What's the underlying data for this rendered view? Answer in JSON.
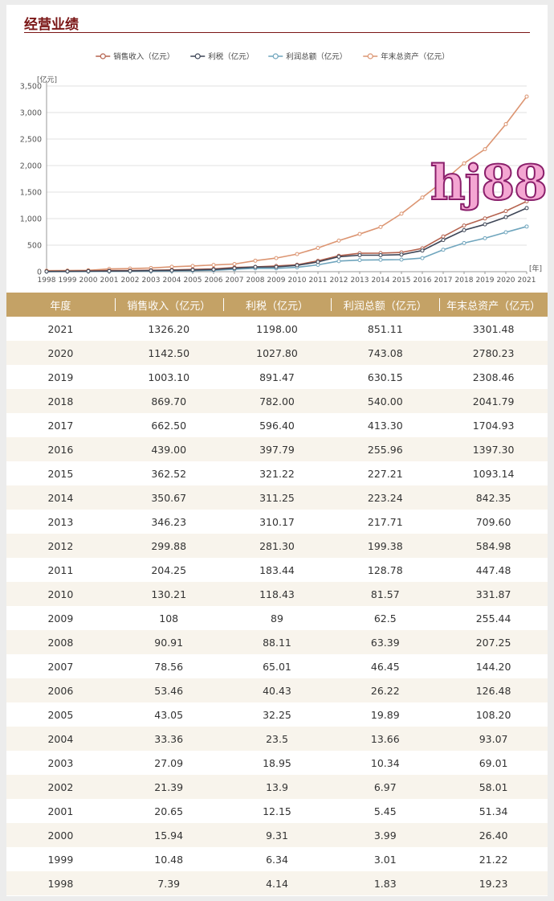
{
  "section_title": "经营业绩",
  "watermark_text": "hj88",
  "chart_data": {
    "type": "line",
    "y_unit_label": "[亿元]",
    "x_unit_label": "[年]",
    "ylim": [
      0,
      3500
    ],
    "y_ticks": [
      "0",
      "500",
      "1,000",
      "1,500",
      "2,000",
      "2,500",
      "3,000",
      "3,500"
    ],
    "y_tick_values": [
      0,
      500,
      1000,
      1500,
      2000,
      2500,
      3000,
      3500
    ],
    "grid": true,
    "legend_position": "top-center",
    "x": [
      "1998",
      "1999",
      "2000",
      "2001",
      "2002",
      "2003",
      "2004",
      "2005",
      "2006",
      "2007",
      "2008",
      "2009",
      "2010",
      "2011",
      "2012",
      "2013",
      "2014",
      "2015",
      "2016",
      "2017",
      "2018",
      "2019",
      "2020",
      "2021"
    ],
    "series": [
      {
        "name": "销售收入（亿元）",
        "color": "#b5634f",
        "values": [
          7.39,
          10.48,
          15.94,
          20.65,
          21.39,
          27.09,
          33.36,
          43.05,
          53.46,
          78.56,
          90.91,
          108,
          130.21,
          204.25,
          299.88,
          346.23,
          350.67,
          362.52,
          439.0,
          662.5,
          869.7,
          1003.1,
          1142.5,
          1326.2
        ]
      },
      {
        "name": "利税（亿元）",
        "color": "#3d4556",
        "values": [
          4.14,
          6.34,
          9.31,
          12.15,
          13.9,
          18.95,
          23.5,
          32.25,
          40.43,
          65.01,
          88.11,
          89,
          118.43,
          183.44,
          281.3,
          310.17,
          311.25,
          321.22,
          397.79,
          596.4,
          782.0,
          891.47,
          1027.8,
          1198.0
        ]
      },
      {
        "name": "利润总额（亿元）",
        "color": "#6fa5bd",
        "values": [
          1.83,
          3.01,
          3.99,
          5.45,
          6.97,
          10.34,
          13.66,
          19.89,
          26.22,
          46.45,
          63.39,
          62.5,
          81.57,
          128.78,
          199.38,
          217.71,
          223.24,
          227.21,
          255.96,
          413.3,
          540.0,
          630.15,
          743.08,
          851.11
        ]
      },
      {
        "name": "年末总资产（亿元）",
        "color": "#dc9572",
        "values": [
          19.23,
          21.22,
          26.4,
          51.34,
          58.01,
          69.01,
          93.07,
          108.2,
          126.48,
          144.2,
          207.25,
          255.44,
          331.87,
          447.48,
          584.98,
          709.6,
          842.35,
          1093.14,
          1397.3,
          1704.93,
          2041.79,
          2308.46,
          2780.23,
          3301.48
        ]
      }
    ]
  },
  "table": {
    "headers": [
      "年度",
      "销售收入（亿元）",
      "利税（亿元）",
      "利润总额（亿元）",
      "年末总资产（亿元）"
    ],
    "rows": [
      [
        "2021",
        "1326.20",
        "1198.00",
        "851.11",
        "3301.48"
      ],
      [
        "2020",
        "1142.50",
        "1027.80",
        "743.08",
        "2780.23"
      ],
      [
        "2019",
        "1003.10",
        "891.47",
        "630.15",
        "2308.46"
      ],
      [
        "2018",
        "869.70",
        "782.00",
        "540.00",
        "2041.79"
      ],
      [
        "2017",
        "662.50",
        "596.40",
        "413.30",
        "1704.93"
      ],
      [
        "2016",
        "439.00",
        "397.79",
        "255.96",
        "1397.30"
      ],
      [
        "2015",
        "362.52",
        "321.22",
        "227.21",
        "1093.14"
      ],
      [
        "2014",
        "350.67",
        "311.25",
        "223.24",
        "842.35"
      ],
      [
        "2013",
        "346.23",
        "310.17",
        "217.71",
        "709.60"
      ],
      [
        "2012",
        "299.88",
        "281.30",
        "199.38",
        "584.98"
      ],
      [
        "2011",
        "204.25",
        "183.44",
        "128.78",
        "447.48"
      ],
      [
        "2010",
        "130.21",
        "118.43",
        "81.57",
        "331.87"
      ],
      [
        "2009",
        "108",
        "89",
        "62.5",
        "255.44"
      ],
      [
        "2008",
        "90.91",
        "88.11",
        "63.39",
        "207.25"
      ],
      [
        "2007",
        "78.56",
        "65.01",
        "46.45",
        "144.20"
      ],
      [
        "2006",
        "53.46",
        "40.43",
        "26.22",
        "126.48"
      ],
      [
        "2005",
        "43.05",
        "32.25",
        "19.89",
        "108.20"
      ],
      [
        "2004",
        "33.36",
        "23.5",
        "13.66",
        "93.07"
      ],
      [
        "2003",
        "27.09",
        "18.95",
        "10.34",
        "69.01"
      ],
      [
        "2002",
        "21.39",
        "13.9",
        "6.97",
        "58.01"
      ],
      [
        "2001",
        "20.65",
        "12.15",
        "5.45",
        "51.34"
      ],
      [
        "2000",
        "15.94",
        "9.31",
        "3.99",
        "26.40"
      ],
      [
        "1999",
        "10.48",
        "6.34",
        "3.01",
        "21.22"
      ],
      [
        "1998",
        "7.39",
        "4.14",
        "1.83",
        "19.23"
      ]
    ]
  }
}
